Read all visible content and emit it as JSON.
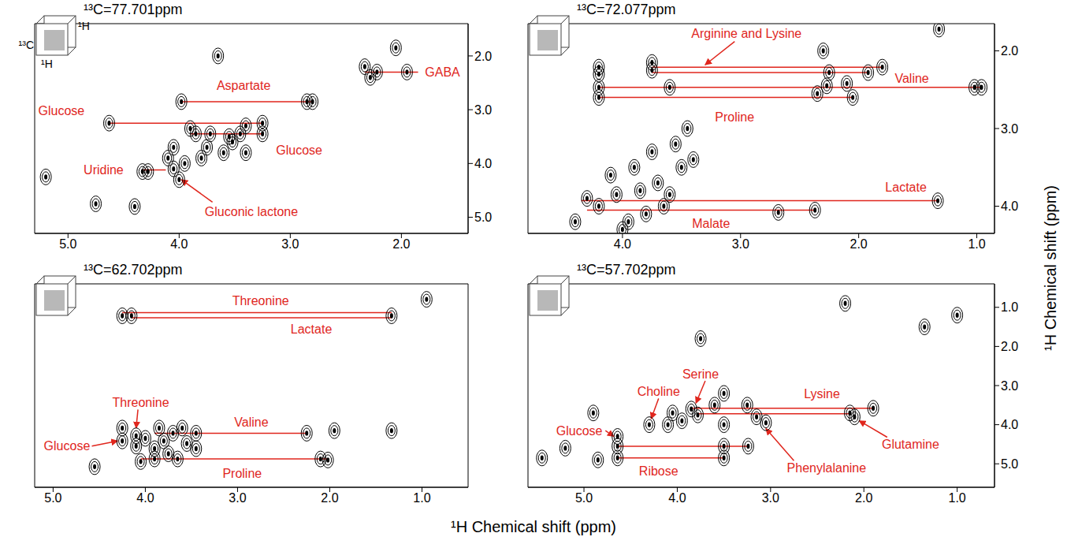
{
  "chart_data": [
    {
      "type": "scatter",
      "title": "¹³C=77.701ppm",
      "icon_labels": [
        "¹³C",
        "¹H",
        "¹H"
      ],
      "xlim": [
        5.3,
        1.4
      ],
      "xticks": [
        {
          "value": 5,
          "label": "5.0"
        },
        {
          "value": 4,
          "label": "4.0"
        },
        {
          "value": 3,
          "label": "3.0"
        },
        {
          "value": 2,
          "label": "2.0"
        }
      ],
      "ylim": [
        1.4,
        5.3
      ],
      "yticks": [
        {
          "value": 2,
          "label": "2.0"
        },
        {
          "value": 3,
          "label": "3.0"
        },
        {
          "value": 4,
          "label": "4.0"
        },
        {
          "value": 5,
          "label": "5.0"
        }
      ],
      "marker": "contour",
      "color": "#000000",
      "peaks": {
        "x": [
          2.33,
          2.28,
          2.22,
          1.95,
          2.05,
          3.65,
          3.98,
          2.85,
          2.8,
          4.63,
          3.25,
          3.4,
          3.45,
          3.25,
          3.52,
          3.72,
          3.85,
          3.9,
          3.4,
          4.05,
          4.1,
          4.05,
          4.0,
          3.95,
          3.8,
          3.75,
          3.6,
          3.55,
          4.33,
          4.28,
          5.2,
          4.75,
          4.4
        ],
        "y": [
          2.2,
          2.4,
          2.3,
          2.3,
          1.85,
          2.0,
          2.85,
          2.85,
          2.85,
          3.25,
          3.25,
          3.3,
          3.45,
          3.45,
          3.6,
          3.45,
          3.45,
          3.35,
          3.8,
          3.7,
          3.9,
          4.1,
          4.3,
          4.0,
          3.9,
          3.7,
          3.8,
          3.5,
          4.15,
          4.15,
          4.25,
          4.75,
          4.8
        ]
      },
      "annotations": [
        {
          "text": "Aspartate",
          "at": [
            3.42,
            2.55
          ],
          "color": "#e0261d",
          "lines": [
            {
              "x": [
                3.98,
                2.8
              ],
              "y": 2.85
            }
          ]
        },
        {
          "text": "GABA",
          "at": [
            1.63,
            2.3
          ],
          "color": "#e0261d",
          "lines": [
            {
              "x": [
                2.33,
                1.85
              ],
              "y": 2.3
            }
          ]
        },
        {
          "text": "Glucose",
          "at": [
            5.06,
            3.02
          ],
          "color": "#e0261d",
          "lines": [
            {
              "x": [
                4.63,
                3.25
              ],
              "y": 3.25
            }
          ]
        },
        {
          "text": "Glucose",
          "at": [
            2.92,
            3.75
          ],
          "color": "#e0261d",
          "lines": [
            {
              "x": [
                3.9,
                3.25
              ],
              "y": 3.45
            }
          ]
        },
        {
          "text": "Uridine",
          "at": [
            4.68,
            4.12
          ],
          "color": "#e0261d",
          "lines": [
            {
              "x": [
                4.33,
                4.12
              ],
              "y": 4.12
            }
          ]
        },
        {
          "text": "Gluconic lactone",
          "at": [
            3.35,
            4.9
          ],
          "color": "#e0261d",
          "arrow": {
            "from": [
              3.7,
              4.72
            ],
            "to": [
              3.98,
              4.3
            ]
          }
        }
      ]
    },
    {
      "type": "scatter",
      "title": "¹³C=72.077ppm",
      "xlim": [
        4.8,
        0.85
      ],
      "xticks": [
        {
          "value": 4,
          "label": "4.0"
        },
        {
          "value": 3,
          "label": "3.0"
        },
        {
          "value": 2,
          "label": "2.0"
        },
        {
          "value": 1,
          "label": "1.0"
        }
      ],
      "ylim": [
        1.65,
        4.35
      ],
      "yticks": [
        {
          "value": 2,
          "label": "2.0"
        },
        {
          "value": 3,
          "label": "3.0"
        },
        {
          "value": 4,
          "label": "4.0"
        }
      ],
      "marker": "contour",
      "color": "#000000",
      "peaks": {
        "x": [
          1.32,
          4.2,
          4.2,
          3.75,
          3.75,
          2.25,
          1.92,
          1.8,
          4.2,
          3.6,
          2.27,
          2.1,
          1.02,
          0.96,
          4.2,
          2.05,
          2.35,
          1.33,
          2.37,
          2.68,
          4.3,
          4.2,
          4.1,
          4.05,
          3.95,
          3.9,
          3.85,
          3.8,
          3.75,
          3.7,
          3.65,
          3.55,
          3.5,
          3.45,
          3.4,
          4.4,
          4.0,
          3.6,
          2.3
        ],
        "y": [
          1.72,
          2.21,
          2.3,
          2.15,
          2.25,
          2.28,
          2.28,
          2.21,
          2.47,
          2.47,
          2.45,
          2.42,
          2.47,
          2.47,
          2.6,
          2.6,
          2.55,
          3.93,
          4.05,
          4.08,
          3.9,
          4.0,
          3.6,
          3.85,
          4.2,
          3.5,
          3.8,
          4.1,
          3.3,
          3.7,
          4.0,
          3.2,
          3.5,
          3.0,
          3.4,
          4.2,
          4.3,
          3.85,
          2.0
        ]
      },
      "annotations": [
        {
          "text": "Arginine and Lysine",
          "at": [
            2.95,
            1.78
          ],
          "color": "#e0261d",
          "arrow": {
            "from": [
              3.05,
              1.88
            ],
            "to": [
              3.3,
              2.18
            ]
          },
          "lines": [
            {
              "x": [
                3.75,
                1.8
              ],
              "y": 2.21
            },
            {
              "x": [
                3.75,
                1.92
              ],
              "y": 2.28
            }
          ]
        },
        {
          "text": "Valine",
          "at": [
            1.55,
            2.35
          ],
          "color": "#e0261d",
          "lines": [
            {
              "x": [
                4.2,
                0.96
              ],
              "y": 2.47
            }
          ]
        },
        {
          "text": "Proline",
          "at": [
            3.05,
            2.85
          ],
          "color": "#e0261d",
          "lines": [
            {
              "x": [
                4.2,
                2.05
              ],
              "y": 2.6
            }
          ]
        },
        {
          "text": "Lactate",
          "at": [
            1.6,
            3.75
          ],
          "color": "#e0261d",
          "lines": [
            {
              "x": [
                4.35,
                1.33
              ],
              "y": 3.93
            }
          ]
        },
        {
          "text": "Malate",
          "at": [
            3.25,
            4.22
          ],
          "color": "#e0261d",
          "lines": [
            {
              "x": [
                4.3,
                2.37
              ],
              "y": 4.05
            }
          ]
        }
      ]
    },
    {
      "type": "scatter",
      "title": "¹³C=62.702ppm",
      "tick_labels": "x",
      "xlim": [
        5.2,
        0.5
      ],
      "xticks": [
        {
          "value": 5,
          "label": "5.0"
        },
        {
          "value": 4,
          "label": "4.0"
        },
        {
          "value": 3,
          "label": "3.0"
        },
        {
          "value": 2,
          "label": "2.0"
        },
        {
          "value": 1,
          "label": "1.0"
        }
      ],
      "ylim": [
        0.7,
        4.65
      ],
      "marker": "contour",
      "color": "#000000",
      "peaks": {
        "x": [
          4.25,
          4.15,
          1.33,
          0.95,
          4.25,
          4.25,
          4.1,
          4.1,
          4.0,
          3.9,
          3.85,
          3.8,
          3.75,
          3.7,
          3.6,
          3.55,
          3.45,
          3.45,
          3.65,
          4.05,
          3.9,
          2.25,
          1.95,
          2.1,
          2.02,
          4.55,
          1.33
        ],
        "y": [
          1.32,
          1.32,
          1.32,
          1.0,
          3.5,
          3.75,
          3.65,
          3.85,
          3.7,
          3.9,
          3.5,
          3.75,
          4.0,
          3.6,
          3.5,
          3.8,
          3.6,
          3.9,
          4.1,
          4.15,
          4.1,
          3.6,
          3.55,
          4.1,
          4.12,
          4.25,
          3.55
        ]
      },
      "annotations": [
        {
          "text": "Threonine",
          "at": [
            2.75,
            1.03
          ],
          "color": "#e0261d",
          "lines": [
            {
              "x": [
                4.25,
                1.33
              ],
              "y": 1.26
            }
          ]
        },
        {
          "text": "Lactate",
          "at": [
            2.2,
            1.58
          ],
          "color": "#e0261d",
          "lines": [
            {
              "x": [
                4.15,
                1.33
              ],
              "y": 1.36
            }
          ]
        },
        {
          "text": "Threonine",
          "at": [
            4.05,
            3.0
          ],
          "color": "#e0261d",
          "arrow": {
            "from": [
              4.08,
              3.14
            ],
            "to": [
              4.1,
              3.5
            ]
          }
        },
        {
          "text": "Glucose",
          "at": [
            4.85,
            3.85
          ],
          "color": "#e0261d",
          "arrow": {
            "from": [
              4.58,
              3.85
            ],
            "to": [
              4.3,
              3.75
            ]
          }
        },
        {
          "text": "Valine",
          "at": [
            2.85,
            3.38
          ],
          "color": "#e0261d",
          "lines": [
            {
              "x": [
                3.9,
                2.25
              ],
              "y": 3.6
            }
          ]
        },
        {
          "text": "Proline",
          "at": [
            2.95,
            4.38
          ],
          "color": "#e0261d",
          "lines": [
            {
              "x": [
                4.05,
                2.02
              ],
              "y": 4.1
            }
          ]
        }
      ]
    },
    {
      "type": "scatter",
      "title": "¹³C=57.702ppm",
      "xlim": [
        5.6,
        0.6
      ],
      "xticks": [
        {
          "value": 5,
          "label": "5.0"
        },
        {
          "value": 4,
          "label": "4.0"
        },
        {
          "value": 3,
          "label": "3.0"
        },
        {
          "value": 2,
          "label": "2.0"
        },
        {
          "value": 1,
          "label": "1.0"
        }
      ],
      "ylim": [
        0.4,
        5.6
      ],
      "yticks": [
        {
          "value": 1,
          "label": "1.0"
        },
        {
          "value": 2,
          "label": "2.0"
        },
        {
          "value": 3,
          "label": "3.0"
        },
        {
          "value": 4,
          "label": "4.0"
        },
        {
          "value": 5,
          "label": "5.0"
        }
      ],
      "marker": "contour",
      "color": "#000000",
      "peaks": {
        "x": [
          4.64,
          4.64,
          4.85,
          5.45,
          5.2,
          4.9,
          4.3,
          4.1,
          4.05,
          3.95,
          3.85,
          3.78,
          3.6,
          3.5,
          3.5,
          3.25,
          3.24,
          3.15,
          3.05,
          2.15,
          2.1,
          1.9,
          2.2,
          1.35,
          1.0,
          3.75,
          3.5,
          4.64,
          3.5
        ],
        "y": [
          4.3,
          4.55,
          4.9,
          4.85,
          4.6,
          3.7,
          4.0,
          4.0,
          3.7,
          3.9,
          3.6,
          3.75,
          3.5,
          4.0,
          4.55,
          3.5,
          4.55,
          3.8,
          3.95,
          3.7,
          3.8,
          3.58,
          0.9,
          1.5,
          1.2,
          1.8,
          4.85,
          4.85,
          3.2
        ]
      },
      "annotations": [
        {
          "text": "Serine",
          "at": [
            3.75,
            2.7
          ],
          "color": "#e0261d",
          "arrow": {
            "from": [
              3.7,
              2.88
            ],
            "to": [
              3.8,
              3.45
            ]
          }
        },
        {
          "text": "Choline",
          "at": [
            4.2,
            3.15
          ],
          "color": "#e0261d",
          "arrow": {
            "from": [
              4.2,
              3.33
            ],
            "to": [
              4.28,
              3.85
            ]
          }
        },
        {
          "text": "Lysine",
          "at": [
            2.45,
            3.2
          ],
          "color": "#e0261d",
          "lines": [
            {
              "x": [
                3.85,
                1.9
              ],
              "y": 3.58
            }
          ]
        },
        {
          "text": "Glutamine",
          "at": [
            1.5,
            4.5
          ],
          "color": "#e0261d",
          "arrow": {
            "from": [
              1.75,
              4.32
            ],
            "to": [
              2.05,
              3.9
            ]
          },
          "lines": [
            {
              "x": [
                3.78,
                2.15
              ],
              "y": 3.72
            }
          ]
        },
        {
          "text": "Phenylalanine",
          "at": [
            2.4,
            5.1
          ],
          "color": "#e0261d",
          "arrow": {
            "from": [
              2.75,
              4.92
            ],
            "to": [
              3.05,
              4.1
            ]
          }
        },
        {
          "text": "Glucose",
          "at": [
            5.05,
            4.15
          ],
          "color": "#e0261d",
          "arrow": {
            "from": [
              4.77,
              4.15
            ],
            "to": [
              4.68,
              4.3
            ]
          },
          "lines": [
            {
              "x": [
                4.64,
                3.24
              ],
              "y": 4.55
            }
          ]
        },
        {
          "text": "Ribose",
          "at": [
            4.2,
            5.18
          ],
          "color": "#e0261d",
          "lines": [
            {
              "x": [
                4.64,
                3.5
              ],
              "y": 4.85
            }
          ]
        }
      ]
    }
  ],
  "xlabel": "¹H Chemical shift (ppm)",
  "ylabel": "¹H Chemical shift (ppm)"
}
